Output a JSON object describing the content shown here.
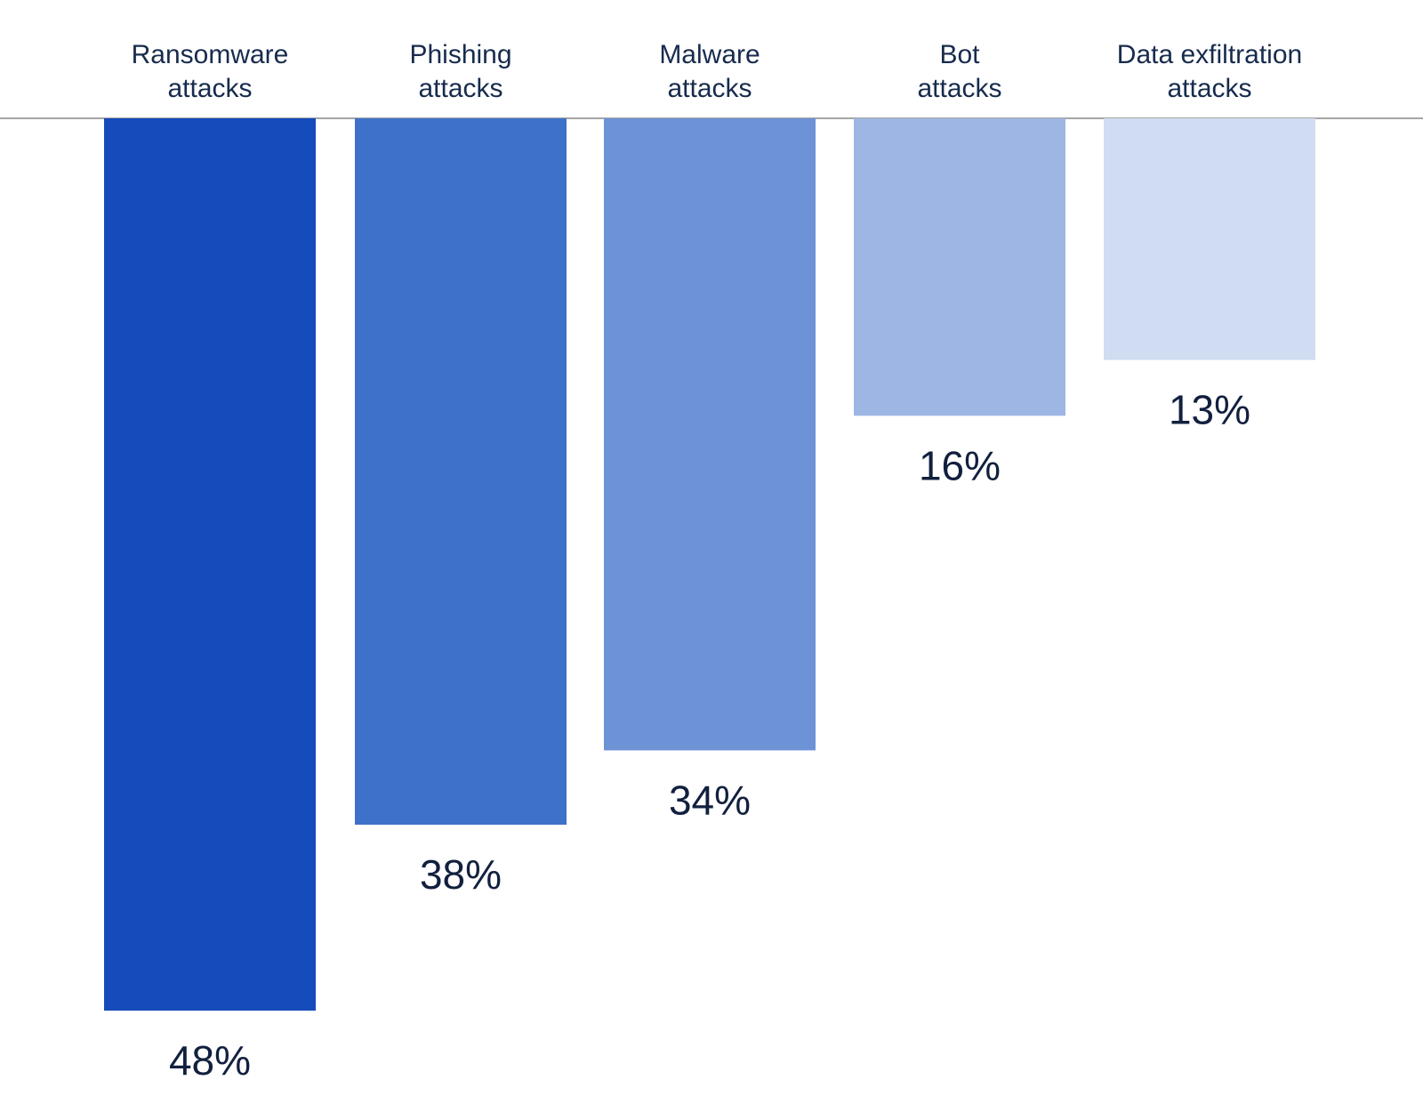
{
  "chart_data": {
    "type": "bar",
    "orientation": "vertical-downward",
    "categories": [
      [
        "Ransomware",
        "attacks"
      ],
      [
        "Phishing",
        "attacks"
      ],
      [
        "Malware",
        "attacks"
      ],
      [
        "Bot",
        "attacks"
      ],
      [
        "Data exfiltration",
        "attacks"
      ]
    ],
    "values": [
      48,
      38,
      34,
      16,
      13
    ],
    "value_labels": [
      "48%",
      "38%",
      "34%",
      "16%",
      "13%"
    ],
    "unit": "%",
    "title": "",
    "xlabel": "",
    "ylabel": "",
    "ylim": [
      0,
      48
    ],
    "grid": false,
    "legend": "none",
    "colors": [
      "#154bba",
      "#3e71c9",
      "#6d93d6",
      "#9db6e3",
      "#d0dcf1"
    ],
    "baseline_color": "#a6a6a6",
    "text_color": "#172b4d"
  }
}
